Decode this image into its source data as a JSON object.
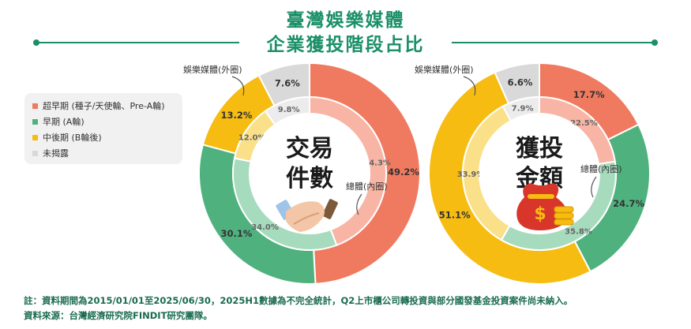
{
  "header": {
    "title_line1": "臺灣娛樂媒體",
    "title_line2": "企業獲投階段占比"
  },
  "legend": {
    "items": [
      {
        "label": "超早期 (種子/天使輪、Pre-A輪)",
        "color": "#f07a5f"
      },
      {
        "label": "早期 (A輪)",
        "color": "#4fb27e"
      },
      {
        "label": "中後期 (B輪後)",
        "color": "#f6bc12"
      },
      {
        "label": "未揭露",
        "color": "#d9d9d9"
      }
    ]
  },
  "footer": {
    "note": "註：資料期間為2015/01/01至2025/06/30，2025H1數據為不完全統計，Q2上市櫃公司轉投資與部分國發基金投資案件尚未納入。",
    "source": "資料來源：台灣經濟研究院FINDIT研究團隊。"
  },
  "chart_data": [
    {
      "type": "pie",
      "center_label": [
        "交易",
        "件數"
      ],
      "outer_label": "娛樂媒體(外圈)",
      "inner_label": "總體(內圈)",
      "categories": [
        "超早期 (種子/天使輪、Pre-A輪)",
        "早期 (A輪)",
        "中後期 (B輪後)",
        "未揭露"
      ],
      "series": [
        {
          "name": "娛樂媒體(外圈)",
          "values": [
            49.2,
            30.1,
            13.2,
            7.6
          ],
          "labels": [
            "49.2%",
            "30.1%",
            "13.2%",
            "7.6%"
          ]
        },
        {
          "name": "總體(內圈)",
          "values": [
            44.3,
            34.0,
            12.0,
            9.8
          ],
          "labels": [
            "44.3%",
            "34.0%",
            "12.0%",
            "9.8%"
          ]
        }
      ],
      "colors": {
        "outer": [
          "#f07a5f",
          "#4fb27e",
          "#f6bc12",
          "#d9d9d9"
        ],
        "inner": [
          "#f8b4a4",
          "#a6dbbe",
          "#fbe08a",
          "#ececec"
        ]
      }
    },
    {
      "type": "pie",
      "center_label": [
        "獲投",
        "金額"
      ],
      "outer_label": "娛樂媒體(外圈)",
      "inner_label": "總體(內圈)",
      "categories": [
        "超早期 (種子/天使輪、Pre-A輪)",
        "早期 (A輪)",
        "中後期 (B輪後)",
        "未揭露"
      ],
      "series": [
        {
          "name": "娛樂媒體(外圈)",
          "values": [
            17.7,
            24.7,
            51.1,
            6.6
          ],
          "labels": [
            "17.7%",
            "24.7%",
            "51.1%",
            "6.6%"
          ]
        },
        {
          "name": "總體(內圈)",
          "values": [
            22.5,
            35.8,
            33.9,
            7.9
          ],
          "labels": [
            "22.5%",
            "35.8%",
            "33.9%",
            "7.9%"
          ]
        }
      ],
      "colors": {
        "outer": [
          "#f07a5f",
          "#4fb27e",
          "#f6bc12",
          "#d9d9d9"
        ],
        "inner": [
          "#f8b4a4",
          "#a6dbbe",
          "#fbe08a",
          "#ececec"
        ]
      }
    }
  ]
}
